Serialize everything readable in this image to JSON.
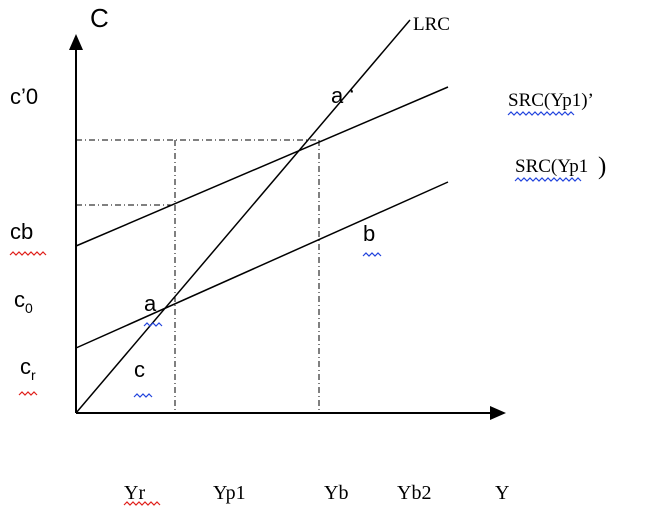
{
  "axes": {
    "y_label": "C",
    "x_label": "Y"
  },
  "curves": {
    "lrc": "LRC",
    "src_upper": "SRC(Yp1)’",
    "src_lower_base": "SRC(Yp1",
    "src_lower_paren": ")"
  },
  "points": {
    "a_prime": "a ‘",
    "a": "a",
    "b": "b",
    "c": "c"
  },
  "y_labels": {
    "c_prime_0": "c’0",
    "cb": "cb",
    "c0_base": "c",
    "c0_sub": "0",
    "cr_base": "c",
    "cr_sub": "r"
  },
  "x_labels": {
    "yr": "Yr",
    "yp1": "Yp1",
    "yb": "Yb",
    "yb2": "Yb2"
  },
  "squiggles": {
    "red_color": "#e0201b",
    "blue_color": "#2244dd"
  }
}
